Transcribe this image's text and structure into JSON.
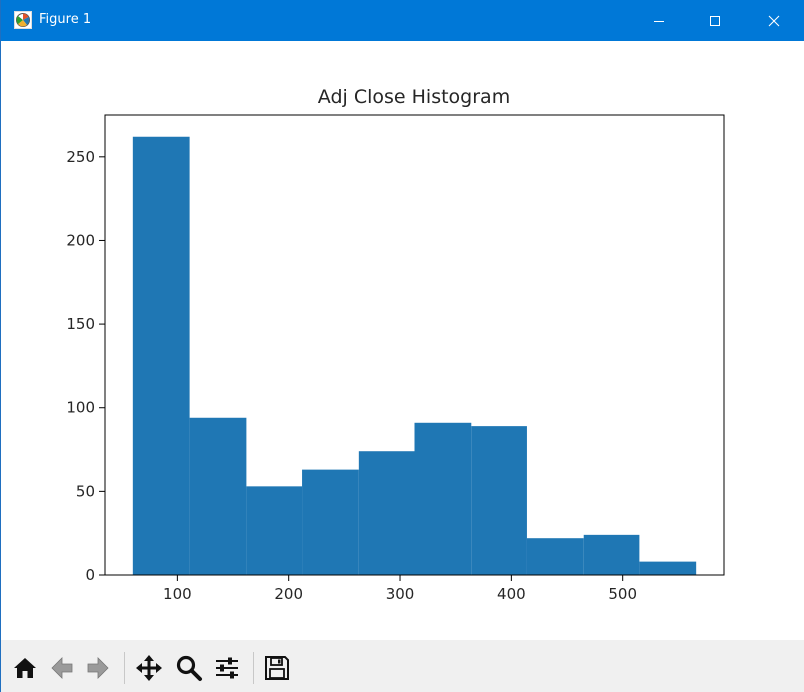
{
  "window": {
    "title": "Figure 1",
    "app_icon": "matplotlib-figure-icon",
    "controls": [
      "minimize-icon",
      "maximize-icon",
      "close-icon"
    ]
  },
  "toolbar": {
    "buttons": [
      {
        "name": "home-button",
        "icon": "home-icon"
      },
      {
        "name": "back-button",
        "icon": "arrow-left-icon"
      },
      {
        "name": "forward-button",
        "icon": "arrow-right-icon"
      },
      {
        "name": "pan-button",
        "icon": "move-icon"
      },
      {
        "name": "zoom-button",
        "icon": "magnifier-icon"
      },
      {
        "name": "configure-subplots-button",
        "icon": "sliders-icon"
      },
      {
        "name": "save-button",
        "icon": "floppy-disk-icon"
      }
    ]
  },
  "colors": {
    "titlebar": "#0078d7",
    "bar": "#1f77b4",
    "toolbar": "#f0f0f0"
  },
  "chart_data": {
    "type": "bar",
    "subtype": "histogram",
    "title": "Adj Close Histogram",
    "xlabel": "",
    "ylabel": "",
    "bins": [
      {
        "x0": 60,
        "x1": 111,
        "count": 262
      },
      {
        "x0": 111,
        "x1": 162,
        "count": 94
      },
      {
        "x0": 162,
        "x1": 212,
        "count": 53
      },
      {
        "x0": 212,
        "x1": 263,
        "count": 63
      },
      {
        "x0": 263,
        "x1": 313,
        "count": 74
      },
      {
        "x0": 313,
        "x1": 364,
        "count": 91
      },
      {
        "x0": 364,
        "x1": 414,
        "count": 89
      },
      {
        "x0": 414,
        "x1": 465,
        "count": 22
      },
      {
        "x0": 465,
        "x1": 515,
        "count": 24
      },
      {
        "x0": 515,
        "x1": 566,
        "count": 8
      }
    ],
    "xlim": [
      35,
      591
    ],
    "ylim": [
      0,
      275
    ],
    "xticks": [
      100,
      200,
      300,
      400,
      500
    ],
    "yticks": [
      0,
      50,
      100,
      150,
      200,
      250
    ],
    "grid": false,
    "legend": "none"
  }
}
